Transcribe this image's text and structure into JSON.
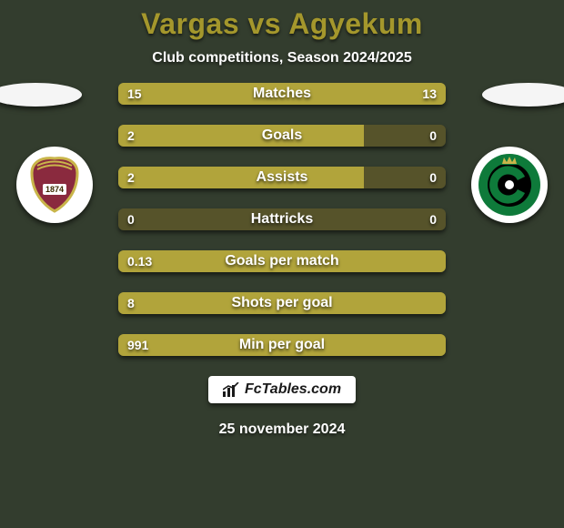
{
  "background_color": "#333d2e",
  "title": {
    "text": "Vargas vs Agyekum",
    "fontsize": 32,
    "color": "#a4972c"
  },
  "subtitle": {
    "text": "Club competitions, Season 2024/2025",
    "fontsize": 16,
    "color": "#ffffff"
  },
  "left_flag_color": "#f5f5f5",
  "right_flag_color": "#f5f5f5",
  "left_club": {
    "bg": "#ffffff",
    "shield_fill": "#8a2a3e",
    "shield_border": "#c9b54a",
    "year": "1874",
    "year_bg": "#ffffff",
    "year_color": "#3a2a00"
  },
  "right_club": {
    "bg": "#ffffff",
    "ring_outer": "#0e7a3a",
    "c_color": "#000000",
    "crown": "#c9b54a",
    "dot": "#ffffff",
    "crown_bg": "#0e7a3a"
  },
  "bars": {
    "track_color": "#56532a",
    "fill_color": "#b1a43b",
    "label_color": "#ffffff",
    "value_color": "#ffffff",
    "label_fontsize": 16,
    "value_fontsize": 14,
    "rows": [
      {
        "label": "Matches",
        "left": "15",
        "right": "13",
        "left_pct": 53.6,
        "right_pct": 46.4
      },
      {
        "label": "Goals",
        "left": "2",
        "right": "0",
        "left_pct": 75.0,
        "right_pct": 0.0
      },
      {
        "label": "Assists",
        "left": "2",
        "right": "0",
        "left_pct": 75.0,
        "right_pct": 0.0
      },
      {
        "label": "Hattricks",
        "left": "0",
        "right": "0",
        "left_pct": 0.0,
        "right_pct": 0.0
      },
      {
        "label": "Goals per match",
        "left": "0.13",
        "right": "",
        "left_pct": 100.0,
        "right_pct": 0.0
      },
      {
        "label": "Shots per goal",
        "left": "8",
        "right": "",
        "left_pct": 100.0,
        "right_pct": 0.0
      },
      {
        "label": "Min per goal",
        "left": "991",
        "right": "",
        "left_pct": 100.0,
        "right_pct": 0.0
      }
    ]
  },
  "footer_badge": {
    "text": "FcTables.com",
    "bg": "#ffffff",
    "color": "#1a1a1a",
    "fontsize": 16
  },
  "date": {
    "text": "25 november 2024",
    "fontsize": 16,
    "color": "#ffffff"
  }
}
